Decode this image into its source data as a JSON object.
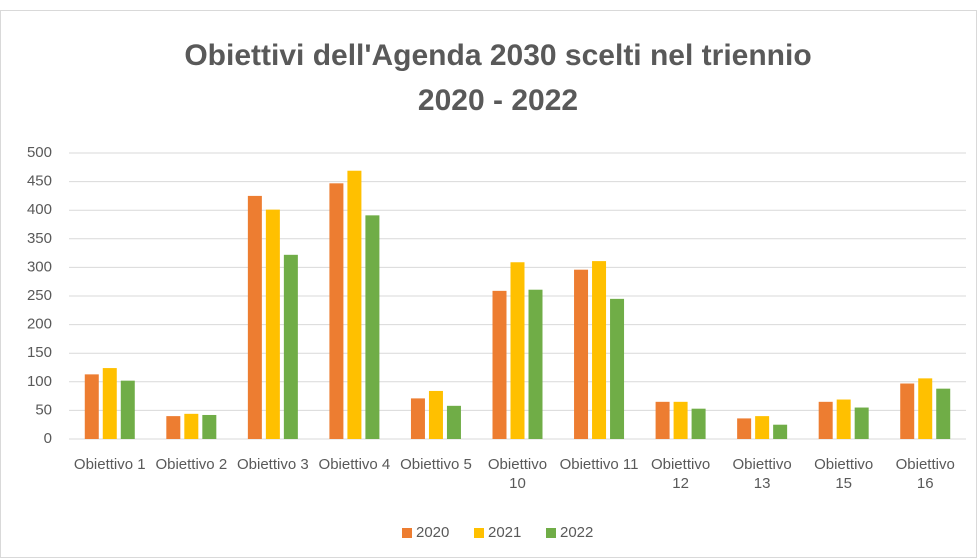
{
  "chart_data": {
    "type": "bar",
    "title": [
      "Obiettivi dell'Agenda 2030 scelti nel triennio",
      "2020 - 2022"
    ],
    "categories": [
      "Obiettivo 1",
      "Obiettivo 2",
      "Obiettivo 3",
      "Obiettivo 4",
      "Obiettivo 5",
      "Obiettivo 10",
      "Obiettivo 11",
      "Obiettivo 12",
      "Obiettivo 13",
      "Obiettivo 15",
      "Obiettivo 16"
    ],
    "series": [
      {
        "name": "2020",
        "color": "#ed7d31",
        "values": [
          113,
          40,
          425,
          447,
          71,
          259,
          296,
          65,
          36,
          65,
          97
        ]
      },
      {
        "name": "2021",
        "color": "#ffc000",
        "values": [
          124,
          44,
          401,
          469,
          84,
          309,
          311,
          65,
          40,
          69,
          106
        ]
      },
      {
        "name": "2022",
        "color": "#70ad47",
        "values": [
          102,
          42,
          322,
          391,
          58,
          261,
          245,
          53,
          25,
          55,
          88
        ]
      }
    ],
    "ylim": [
      0,
      500
    ],
    "yticks": [
      0,
      50,
      100,
      150,
      200,
      250,
      300,
      350,
      400,
      450,
      500
    ],
    "grid": true,
    "legend": "bottom"
  }
}
